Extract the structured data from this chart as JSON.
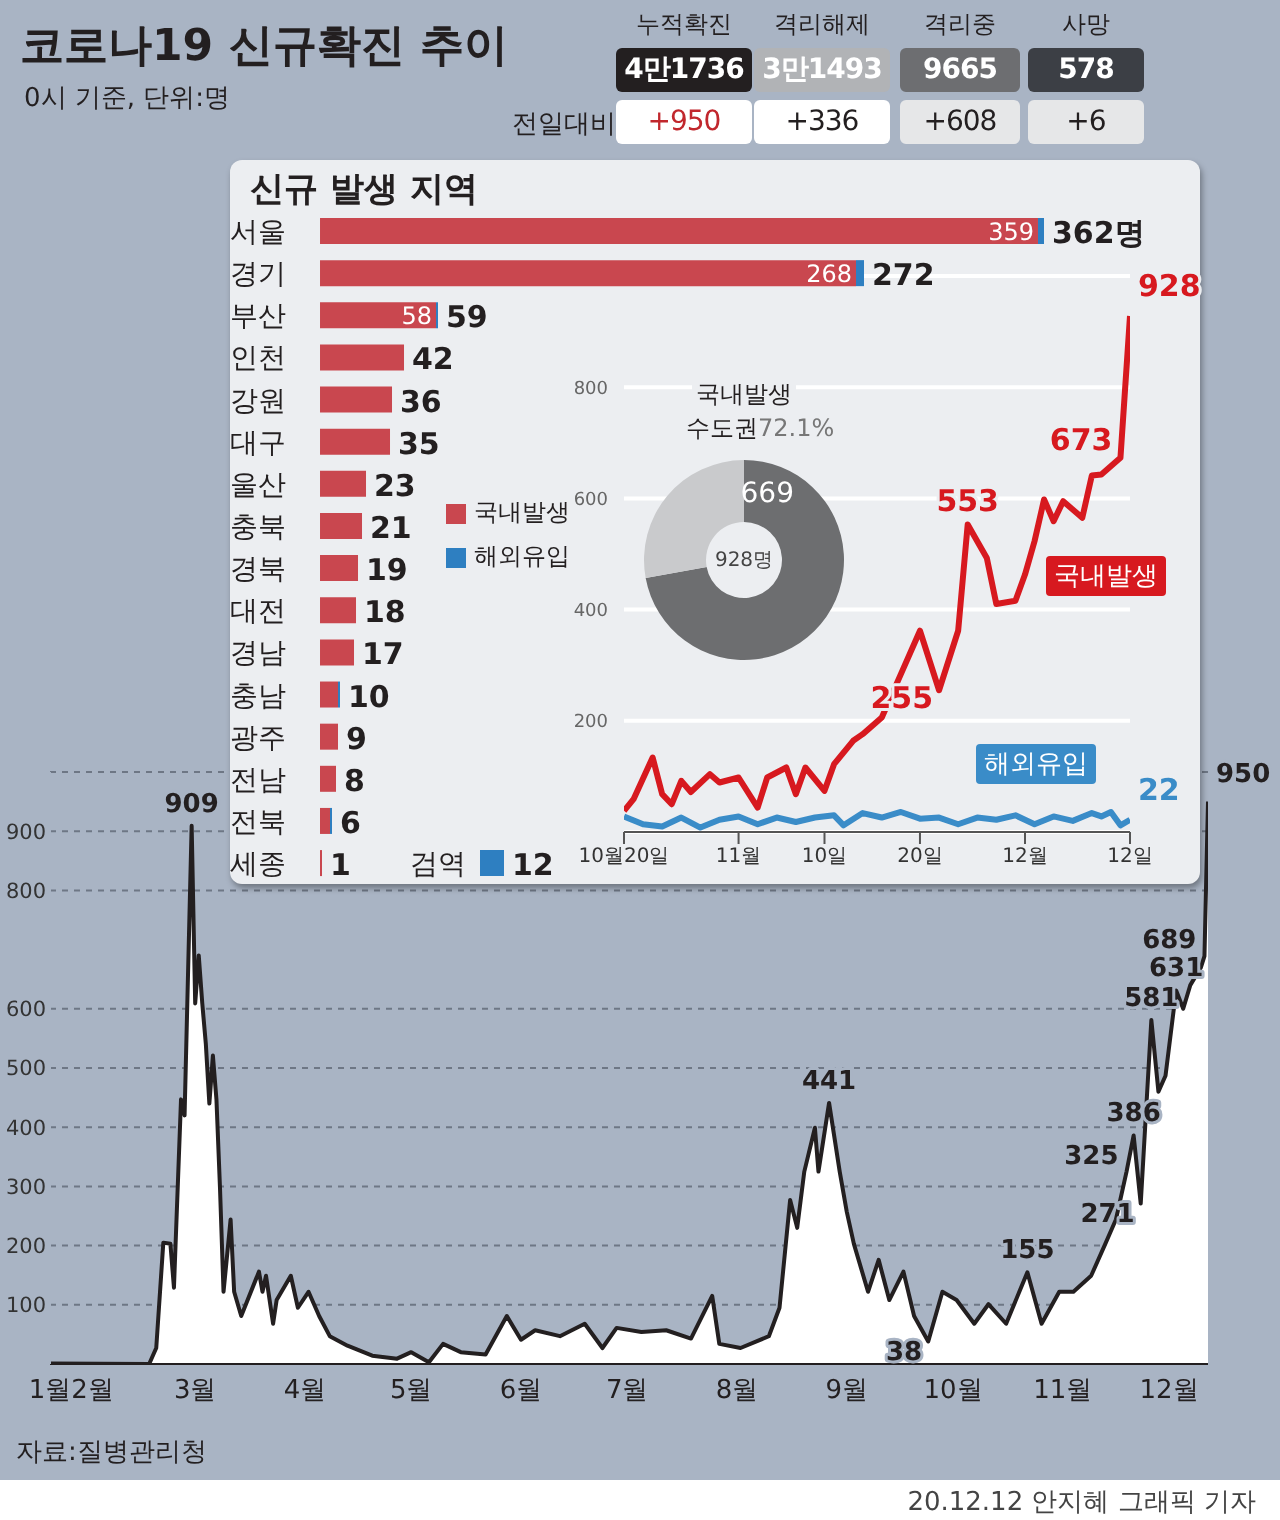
{
  "chart_data": [
    {
      "type": "area",
      "title": "코로나19 신규확진 추이",
      "subtitle": "0시 기준, 단위:명",
      "color": "#231f20",
      "x": [
        "--01-20",
        "--02-17",
        "--02-19",
        "--02-21",
        "--02-23",
        "--02-24",
        "--02-26",
        "--02-27",
        "--02-29",
        "--03-01",
        "--03-02",
        "--03-03",
        "--03-04",
        "--03-05",
        "--03-06",
        "--03-07",
        "--03-08",
        "--03-09",
        "--03-11",
        "--03-12",
        "--03-14",
        "--03-19",
        "--03-20",
        "--03-21",
        "--03-23",
        "--03-24",
        "--03-28",
        "--03-30",
        "--04-02",
        "--04-05",
        "--04-08",
        "--04-13",
        "--04-20",
        "--04-27",
        "--05-01",
        "--05-06",
        "--05-10",
        "--05-15",
        "--05-22",
        "--05-28",
        "--06-01",
        "--06-05",
        "--06-12",
        "--06-19",
        "--06-24",
        "--06-28",
        "--07-05",
        "--07-12",
        "--07-19",
        "--07-25",
        "--07-27",
        "--08-02",
        "--08-10",
        "--08-13",
        "--08-16",
        "--08-18",
        "--08-20",
        "--08-23",
        "--08-24",
        "--08-27",
        "--08-30",
        "--09-01",
        "--09-03",
        "--09-07",
        "--09-10",
        "--09-13",
        "--09-17",
        "--09-20",
        "--09-24",
        "--09-28",
        "--10-02",
        "--10-07",
        "--10-11",
        "--10-16",
        "--10-22",
        "--10-26",
        "--10-31",
        "--11-04",
        "--11-09",
        "--11-13",
        "--11-16",
        "--11-19",
        "--11-21",
        "--11-23",
        "--11-26",
        "--11-28",
        "--11-30",
        "--12-03",
        "--12-05",
        "--12-07",
        "--12-10",
        "--12-11",
        "--12-12"
      ],
      "values": [
        1,
        0,
        27,
        205,
        203,
        129,
        447,
        420,
        909,
        609,
        690,
        609,
        541,
        440,
        521,
        447,
        298,
        122,
        244,
        122,
        81,
        156,
        122,
        149,
        68,
        108,
        149,
        95,
        122,
        81,
        47,
        31,
        14,
        9,
        20,
        3,
        34,
        20,
        16,
        81,
        41,
        57,
        47,
        68,
        27,
        61,
        54,
        57,
        43,
        115,
        34,
        27,
        47,
        95,
        277,
        230,
        325,
        399,
        325,
        441,
        325,
        257,
        203,
        122,
        176,
        108,
        156,
        81,
        38,
        122,
        108,
        68,
        101,
        68,
        155,
        68,
        122,
        122,
        149,
        203,
        244,
        325,
        386,
        271,
        581,
        460,
        487,
        631,
        600,
        640,
        670,
        689,
        950
      ],
      "value_labels": [
        null,
        null,
        null,
        null,
        null,
        null,
        null,
        null,
        "909",
        null,
        null,
        null,
        null,
        null,
        null,
        null,
        null,
        null,
        null,
        null,
        null,
        null,
        null,
        null,
        null,
        null,
        null,
        null,
        null,
        null,
        null,
        null,
        null,
        null,
        null,
        null,
        null,
        null,
        null,
        null,
        null,
        null,
        null,
        null,
        null,
        null,
        null,
        null,
        null,
        null,
        null,
        null,
        null,
        null,
        null,
        null,
        null,
        null,
        null,
        "441",
        null,
        null,
        null,
        null,
        null,
        null,
        null,
        null,
        "38",
        null,
        null,
        null,
        null,
        null,
        "155",
        null,
        null,
        null,
        null,
        null,
        null,
        "325",
        "386",
        "271",
        "581",
        null,
        null,
        "631",
        null,
        null,
        null,
        "689",
        "950"
      ],
      "xlim": [
        "--01-20",
        "--12-12"
      ],
      "xticks": [
        {
          "value": "--01-20",
          "label": "1월"
        },
        {
          "value": "--02-01",
          "label": "2월"
        },
        {
          "value": "--03-01",
          "label": "3월"
        },
        {
          "value": "--04-01",
          "label": "4월"
        },
        {
          "value": "--05-01",
          "label": "5월"
        },
        {
          "value": "--06-01",
          "label": "6월"
        },
        {
          "value": "--07-01",
          "label": "7월"
        },
        {
          "value": "--08-01",
          "label": "8월"
        },
        {
          "value": "--09-01",
          "label": "9월"
        },
        {
          "value": "--10-01",
          "label": "10월"
        },
        {
          "value": "--11-01",
          "label": "11월"
        },
        {
          "value": "--12-01",
          "label": "12월"
        }
      ],
      "ylim": [
        0,
        1000
      ],
      "yticks": [
        100,
        200,
        300,
        400,
        500,
        600,
        800,
        900
      ],
      "grid": "y",
      "annotations": [
        "자료:질병관리청",
        "20.12.12 안지혜 그래픽 기자"
      ]
    },
    {
      "type": "other",
      "annotations": [
        "누적확진",
        "격리해제",
        "격리중",
        "사망",
        "4만1736",
        "3만1493",
        "9665",
        "578",
        "전일대비",
        "+950",
        "+336",
        "+608",
        "+6"
      ]
    },
    {
      "type": "bar",
      "title": "신규 발생 지역",
      "orientation": "horizontal",
      "stacked": true,
      "legend": "center",
      "categories": [
        "서울",
        "경기",
        "부산",
        "인천",
        "강원",
        "대구",
        "울산",
        "충북",
        "경북",
        "대전",
        "경남",
        "충남",
        "광주",
        "전남",
        "전북",
        "세종"
      ],
      "series": [
        {
          "name": "국내발생",
          "color": "#c9474f",
          "values": [
            359,
            268,
            58,
            42,
            36,
            35,
            23,
            21,
            19,
            18,
            17,
            9,
            9,
            8,
            5,
            1
          ],
          "value_labels": [
            "359",
            "268",
            "58",
            null,
            null,
            null,
            null,
            null,
            null,
            null,
            null,
            null,
            null,
            null,
            null,
            null
          ]
        },
        {
          "name": "해외유입",
          "color": "#2e7fc1",
          "values": [
            3,
            4,
            1,
            null,
            null,
            null,
            null,
            null,
            null,
            null,
            null,
            1,
            null,
            null,
            1,
            null
          ]
        }
      ],
      "totals": [
        "362명",
        "272",
        "59",
        "42",
        "36",
        "35",
        "23",
        "21",
        "19",
        "18",
        "17",
        "10",
        "9",
        "8",
        "6",
        "1"
      ]
    },
    {
      "type": "bar",
      "orientation": "horizontal",
      "categories": [
        "검역"
      ],
      "series": [
        {
          "color": "#2e7fc1",
          "values": [
            12
          ]
        }
      ],
      "data_labels": true
    },
    {
      "type": "donut",
      "title": "국내발생",
      "categories": [
        "수도권",
        null
      ],
      "values": [
        72.1,
        27.9
      ],
      "colors": [
        "#6d6e70",
        "#c9cacc"
      ],
      "annotations": [
        "72.1%",
        "669",
        "928명"
      ]
    },
    {
      "type": "line",
      "xlim": [
        "--10-20",
        "--12-12"
      ],
      "xticks": [
        {
          "value": "--10-20",
          "label": "10월20일"
        },
        {
          "value": "--11-01",
          "label": "11월"
        },
        {
          "value": "--11-10",
          "label": "10일"
        },
        {
          "value": "--11-20",
          "label": "20일"
        },
        {
          "value": "--12-01",
          "label": "12월"
        },
        {
          "value": "--12-12",
          "label": "12일"
        }
      ],
      "ylim": [
        0,
        1000
      ],
      "yticks": [
        200,
        400,
        600,
        800
      ],
      "grid": "y",
      "series": [
        {
          "name": "국내발생",
          "color": "#d7191f",
          "x": [
            "--10-20",
            "--10-21",
            "--10-23",
            "--10-24",
            "--10-25",
            "--10-26",
            "--10-27",
            "--10-29",
            "--10-30",
            "--11-01",
            "--11-03",
            "--11-04",
            "--11-06",
            "--11-07",
            "--11-08",
            "--11-10",
            "--11-11",
            "--11-13",
            "--11-14",
            "--11-16",
            "--11-18",
            "--11-20",
            "--11-22",
            "--11-24",
            "--11-25",
            "--11-27",
            "--11-28",
            "--11-30",
            "--12-01",
            "--12-02",
            "--12-03",
            "--12-04",
            "--12-05",
            "--12-07",
            "--12-08",
            "--12-09",
            "--12-11",
            "--12-12"
          ],
          "values": [
            38,
            59,
            134,
            68,
            50,
            92,
            72,
            104,
            89,
            98,
            44,
            98,
            116,
            68,
            116,
            74,
            122,
            164,
            176,
            206,
            284,
            362,
            255,
            362,
            553,
            493,
            410,
            416,
            463,
            523,
            598,
            559,
            595,
            565,
            641,
            643,
            673,
            928
          ],
          "value_labels": [
            null,
            null,
            null,
            null,
            null,
            null,
            null,
            null,
            null,
            null,
            null,
            null,
            null,
            null,
            null,
            null,
            null,
            null,
            null,
            null,
            null,
            null,
            "255",
            null,
            "553",
            null,
            null,
            null,
            null,
            null,
            null,
            null,
            null,
            null,
            null,
            null,
            "673",
            "928"
          ]
        },
        {
          "name": "해외유입",
          "color": "#3a8cc8",
          "x": [
            "--10-20",
            "--10-22",
            "--10-24",
            "--10-26",
            "--10-28",
            "--10-30",
            "--11-01",
            "--11-03",
            "--11-05",
            "--11-07",
            "--11-09",
            "--11-11",
            "--11-12",
            "--11-14",
            "--11-16",
            "--11-18",
            "--11-20",
            "--11-22",
            "--11-24",
            "--11-26",
            "--11-28",
            "--11-30",
            "--12-02",
            "--12-04",
            "--12-06",
            "--12-08",
            "--12-09",
            "--12-10",
            "--12-11",
            "--12-12"
          ],
          "values": [
            28,
            14,
            10,
            26,
            8,
            22,
            28,
            14,
            26,
            18,
            26,
            30,
            12,
            34,
            26,
            36,
            24,
            26,
            14,
            26,
            22,
            30,
            14,
            28,
            20,
            34,
            28,
            36,
            12,
            22
          ],
          "value_labels": [
            null,
            null,
            null,
            null,
            null,
            null,
            null,
            null,
            null,
            null,
            null,
            null,
            null,
            null,
            null,
            null,
            null,
            null,
            null,
            null,
            null,
            null,
            null,
            null,
            null,
            null,
            null,
            null,
            null,
            "22"
          ]
        }
      ]
    }
  ]
}
